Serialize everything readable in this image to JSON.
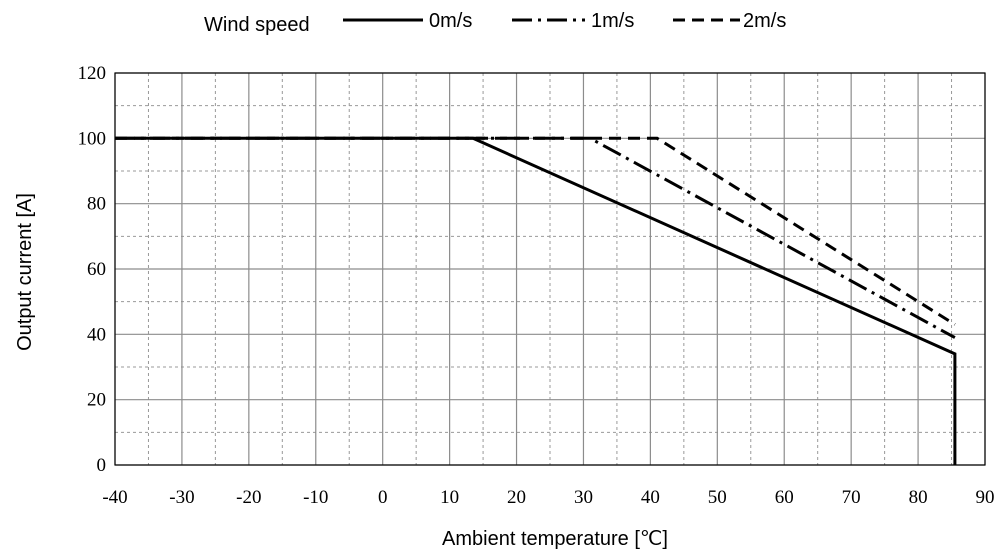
{
  "chart_data": {
    "type": "line",
    "title": "",
    "xlabel": "Ambient temperature [℃]",
    "ylabel": "Output current [A]",
    "xlim": [
      -40,
      90
    ],
    "ylim": [
      0,
      120
    ],
    "x_ticks": [
      -40,
      -30,
      -20,
      -10,
      0,
      10,
      20,
      30,
      40,
      50,
      60,
      70,
      80,
      90
    ],
    "y_ticks": [
      0,
      20,
      40,
      60,
      80,
      100,
      120
    ],
    "grid": {
      "major": true,
      "minor_dashed": true
    },
    "legend": {
      "title": "Wind speed",
      "placement": "top",
      "entries": [
        "0m/s",
        "1m/s",
        "2m/s"
      ]
    },
    "series": [
      {
        "name": "0m/s",
        "style": "solid",
        "color": "#000000",
        "points": [
          [
            -40,
            100
          ],
          [
            13.5,
            100
          ],
          [
            85.5,
            34
          ],
          [
            85.5,
            0
          ]
        ]
      },
      {
        "name": "1m/s",
        "style": "dashdot",
        "color": "#000000",
        "points": [
          [
            -40,
            100
          ],
          [
            31,
            100
          ],
          [
            85.5,
            39
          ]
        ]
      },
      {
        "name": "2m/s",
        "style": "dashed",
        "color": "#000000",
        "points": [
          [
            -40,
            100
          ],
          [
            41,
            100
          ],
          [
            85.5,
            43
          ]
        ]
      }
    ]
  }
}
